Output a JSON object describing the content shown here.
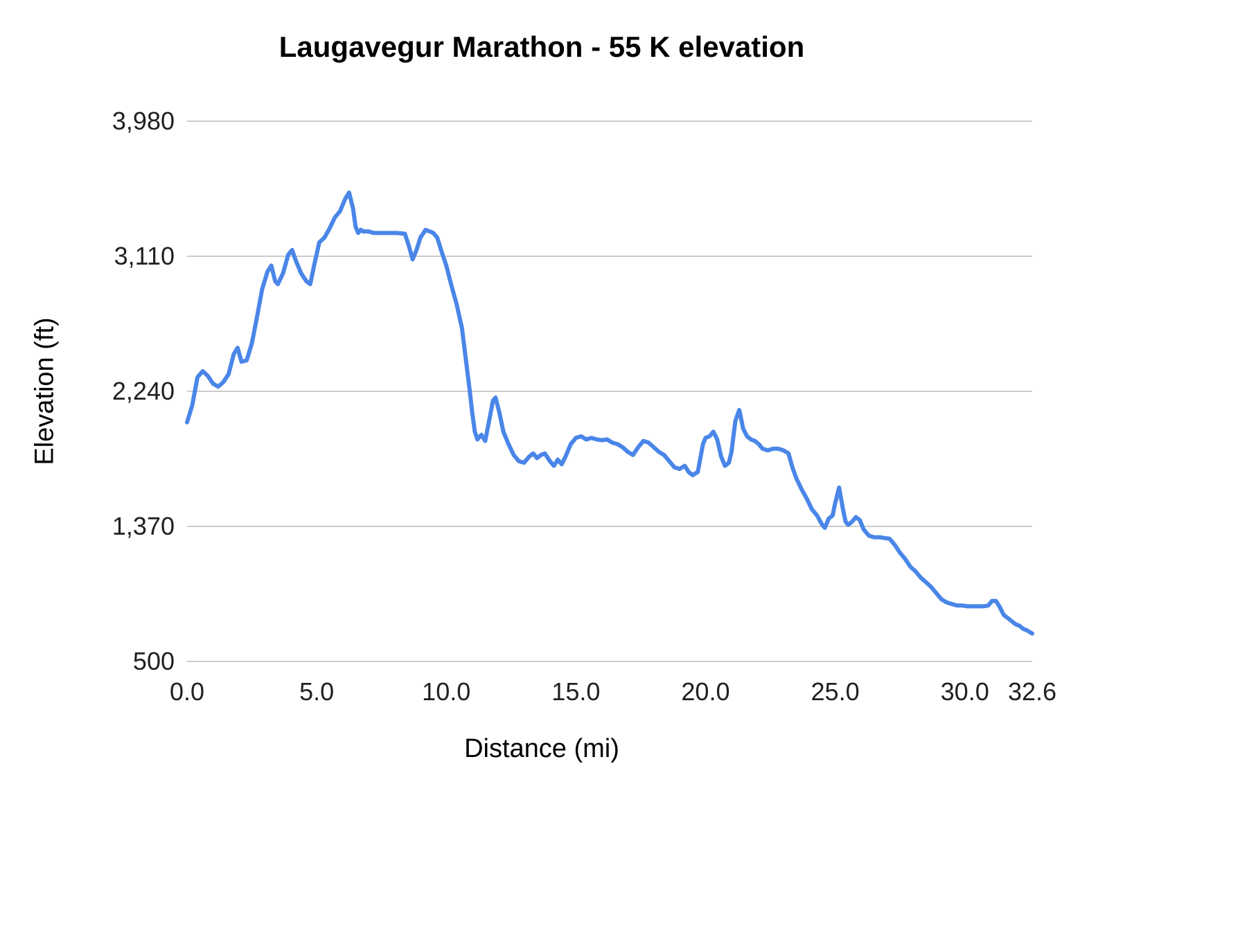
{
  "chart_data": {
    "type": "line",
    "title": "Laugavegur Marathon - 55 K elevation",
    "xlabel": "Distance (mi)",
    "ylabel": "Elevation (ft)",
    "xlim": [
      0,
      32.6
    ],
    "ylim": [
      500,
      3980
    ],
    "grid": true,
    "line_color": "#4a86e8",
    "gridline_color": "#cccccc",
    "y_ticks": [
      {
        "label": "3,980",
        "value": 3980
      },
      {
        "label": "3,110",
        "value": 3110
      },
      {
        "label": "2,240",
        "value": 2240
      },
      {
        "label": "1,370",
        "value": 1370
      },
      {
        "label": "500",
        "value": 500
      }
    ],
    "x_ticks": [
      {
        "label": "0.0",
        "value": 0.0
      },
      {
        "label": "5.0",
        "value": 5.0
      },
      {
        "label": "10.0",
        "value": 10.0
      },
      {
        "label": "15.0",
        "value": 15.0
      },
      {
        "label": "20.0",
        "value": 20.0
      },
      {
        "label": "25.0",
        "value": 25.0
      },
      {
        "label": "30.0",
        "value": 30.0
      },
      {
        "label": "32.6",
        "value": 32.6
      }
    ],
    "series_name": "Elevation (ft)",
    "points": [
      [
        0.0,
        2040
      ],
      [
        0.2,
        2150
      ],
      [
        0.4,
        2330
      ],
      [
        0.6,
        2370
      ],
      [
        0.8,
        2340
      ],
      [
        1.0,
        2290
      ],
      [
        1.2,
        2270
      ],
      [
        1.4,
        2300
      ],
      [
        1.6,
        2350
      ],
      [
        1.8,
        2480
      ],
      [
        1.95,
        2520
      ],
      [
        2.1,
        2430
      ],
      [
        2.3,
        2440
      ],
      [
        2.5,
        2550
      ],
      [
        2.7,
        2720
      ],
      [
        2.9,
        2900
      ],
      [
        3.1,
        3010
      ],
      [
        3.25,
        3050
      ],
      [
        3.4,
        2950
      ],
      [
        3.5,
        2930
      ],
      [
        3.7,
        3000
      ],
      [
        3.9,
        3120
      ],
      [
        4.05,
        3150
      ],
      [
        4.2,
        3080
      ],
      [
        4.4,
        3000
      ],
      [
        4.6,
        2950
      ],
      [
        4.75,
        2930
      ],
      [
        4.9,
        3050
      ],
      [
        5.1,
        3200
      ],
      [
        5.3,
        3230
      ],
      [
        5.5,
        3290
      ],
      [
        5.7,
        3360
      ],
      [
        5.9,
        3400
      ],
      [
        6.1,
        3480
      ],
      [
        6.25,
        3520
      ],
      [
        6.4,
        3420
      ],
      [
        6.5,
        3300
      ],
      [
        6.6,
        3260
      ],
      [
        6.7,
        3280
      ],
      [
        6.8,
        3270
      ],
      [
        7.0,
        3270
      ],
      [
        7.2,
        3260
      ],
      [
        7.5,
        3260
      ],
      [
        7.8,
        3260
      ],
      [
        8.1,
        3260
      ],
      [
        8.4,
        3255
      ],
      [
        8.55,
        3180
      ],
      [
        8.7,
        3090
      ],
      [
        8.85,
        3150
      ],
      [
        9.0,
        3230
      ],
      [
        9.2,
        3280
      ],
      [
        9.35,
        3270
      ],
      [
        9.5,
        3260
      ],
      [
        9.65,
        3230
      ],
      [
        9.8,
        3150
      ],
      [
        10.0,
        3050
      ],
      [
        10.2,
        2920
      ],
      [
        10.4,
        2800
      ],
      [
        10.6,
        2650
      ],
      [
        10.75,
        2450
      ],
      [
        10.9,
        2250
      ],
      [
        11.0,
        2100
      ],
      [
        11.1,
        1980
      ],
      [
        11.2,
        1930
      ],
      [
        11.35,
        1960
      ],
      [
        11.5,
        1920
      ],
      [
        11.65,
        2050
      ],
      [
        11.8,
        2180
      ],
      [
        11.9,
        2200
      ],
      [
        12.05,
        2100
      ],
      [
        12.2,
        1980
      ],
      [
        12.4,
        1900
      ],
      [
        12.6,
        1830
      ],
      [
        12.8,
        1790
      ],
      [
        13.0,
        1780
      ],
      [
        13.2,
        1820
      ],
      [
        13.35,
        1840
      ],
      [
        13.5,
        1810
      ],
      [
        13.65,
        1830
      ],
      [
        13.8,
        1840
      ],
      [
        14.0,
        1790
      ],
      [
        14.15,
        1760
      ],
      [
        14.3,
        1800
      ],
      [
        14.45,
        1770
      ],
      [
        14.6,
        1820
      ],
      [
        14.8,
        1900
      ],
      [
        15.0,
        1940
      ],
      [
        15.2,
        1950
      ],
      [
        15.4,
        1930
      ],
      [
        15.6,
        1940
      ],
      [
        15.8,
        1930
      ],
      [
        16.0,
        1925
      ],
      [
        16.2,
        1930
      ],
      [
        16.4,
        1910
      ],
      [
        16.6,
        1900
      ],
      [
        16.8,
        1880
      ],
      [
        17.0,
        1850
      ],
      [
        17.2,
        1830
      ],
      [
        17.4,
        1880
      ],
      [
        17.6,
        1920
      ],
      [
        17.8,
        1910
      ],
      [
        18.0,
        1880
      ],
      [
        18.2,
        1850
      ],
      [
        18.4,
        1830
      ],
      [
        18.6,
        1790
      ],
      [
        18.8,
        1750
      ],
      [
        19.0,
        1740
      ],
      [
        19.2,
        1760
      ],
      [
        19.35,
        1720
      ],
      [
        19.5,
        1700
      ],
      [
        19.7,
        1720
      ],
      [
        19.9,
        1900
      ],
      [
        20.0,
        1940
      ],
      [
        20.15,
        1950
      ],
      [
        20.3,
        1980
      ],
      [
        20.45,
        1930
      ],
      [
        20.6,
        1820
      ],
      [
        20.75,
        1760
      ],
      [
        20.9,
        1780
      ],
      [
        21.0,
        1850
      ],
      [
        21.15,
        2050
      ],
      [
        21.3,
        2120
      ],
      [
        21.45,
        2000
      ],
      [
        21.6,
        1950
      ],
      [
        21.75,
        1930
      ],
      [
        21.9,
        1920
      ],
      [
        22.05,
        1900
      ],
      [
        22.2,
        1870
      ],
      [
        22.4,
        1860
      ],
      [
        22.6,
        1870
      ],
      [
        22.8,
        1870
      ],
      [
        23.0,
        1860
      ],
      [
        23.2,
        1840
      ],
      [
        23.35,
        1750
      ],
      [
        23.5,
        1680
      ],
      [
        23.7,
        1610
      ],
      [
        23.9,
        1550
      ],
      [
        24.1,
        1480
      ],
      [
        24.3,
        1440
      ],
      [
        24.5,
        1380
      ],
      [
        24.6,
        1360
      ],
      [
        24.75,
        1420
      ],
      [
        24.9,
        1440
      ],
      [
        25.0,
        1520
      ],
      [
        25.15,
        1620
      ],
      [
        25.3,
        1480
      ],
      [
        25.4,
        1400
      ],
      [
        25.5,
        1380
      ],
      [
        25.65,
        1400
      ],
      [
        25.8,
        1430
      ],
      [
        25.95,
        1410
      ],
      [
        26.1,
        1350
      ],
      [
        26.3,
        1310
      ],
      [
        26.5,
        1300
      ],
      [
        26.7,
        1300
      ],
      [
        26.9,
        1295
      ],
      [
        27.1,
        1290
      ],
      [
        27.3,
        1250
      ],
      [
        27.5,
        1200
      ],
      [
        27.7,
        1160
      ],
      [
        27.9,
        1110
      ],
      [
        28.1,
        1080
      ],
      [
        28.3,
        1040
      ],
      [
        28.5,
        1010
      ],
      [
        28.7,
        980
      ],
      [
        28.9,
        940
      ],
      [
        29.1,
        900
      ],
      [
        29.3,
        880
      ],
      [
        29.5,
        870
      ],
      [
        29.7,
        860
      ],
      [
        29.9,
        860
      ],
      [
        30.1,
        855
      ],
      [
        30.3,
        855
      ],
      [
        30.5,
        855
      ],
      [
        30.7,
        855
      ],
      [
        30.9,
        860
      ],
      [
        31.05,
        890
      ],
      [
        31.2,
        890
      ],
      [
        31.35,
        850
      ],
      [
        31.5,
        800
      ],
      [
        31.65,
        780
      ],
      [
        31.8,
        760
      ],
      [
        31.95,
        740
      ],
      [
        32.1,
        730
      ],
      [
        32.25,
        710
      ],
      [
        32.4,
        700
      ],
      [
        32.6,
        680
      ]
    ]
  }
}
